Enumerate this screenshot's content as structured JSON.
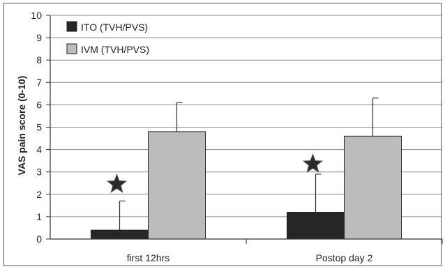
{
  "chart_data": {
    "type": "bar",
    "title": "",
    "xlabel": "",
    "ylabel": "VAS pain score (0-10)",
    "ylim": [
      0,
      10
    ],
    "yticks": [
      "0",
      "1",
      "2",
      "3",
      "4",
      "5",
      "6",
      "7",
      "8",
      "9",
      "10"
    ],
    "grid": true,
    "legend_position": "top-left",
    "categories": [
      "first 12hrs",
      "Postop day 2"
    ],
    "series": [
      {
        "name": "ITO (TVH/PVS)",
        "values": [
          0.4,
          1.2
        ],
        "error_upper": [
          1.7,
          2.9
        ],
        "color": "#262626"
      },
      {
        "name": "IVM (TVH/PVS)",
        "values": [
          4.8,
          4.6
        ],
        "error_upper": [
          6.1,
          6.3
        ],
        "color": "#bcbcbc"
      }
    ],
    "significance_marker": "star",
    "significance_positions": [
      {
        "category": "first 12hrs",
        "y": 2.45
      },
      {
        "category": "Postop day 2",
        "y": 3.35
      }
    ],
    "star_color": "#2a2a2a"
  }
}
